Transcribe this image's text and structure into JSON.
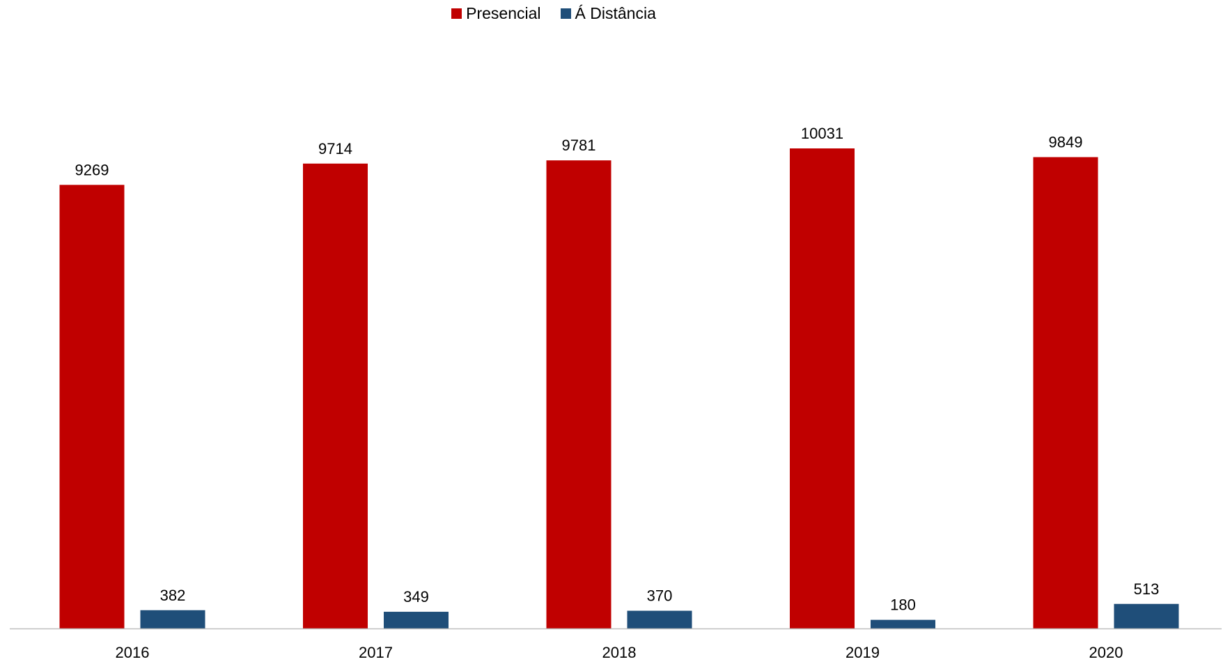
{
  "chart_data": {
    "type": "bar",
    "categories": [
      "2016",
      "2017",
      "2018",
      "2019",
      "2020"
    ],
    "series": [
      {
        "name": "Presencial",
        "values": [
          9269,
          9714,
          9781,
          10031,
          9849
        ],
        "color": "#C00000"
      },
      {
        "name": "Á Distância",
        "values": [
          382,
          349,
          370,
          180,
          513
        ],
        "color": "#1F4E79"
      }
    ],
    "title": "",
    "xlabel": "",
    "ylabel": "",
    "ylim": [
      0,
      10500
    ],
    "grid": false,
    "legend": "top-center",
    "data_labels": true
  },
  "colors": {
    "axis": "#BFBFBF"
  }
}
